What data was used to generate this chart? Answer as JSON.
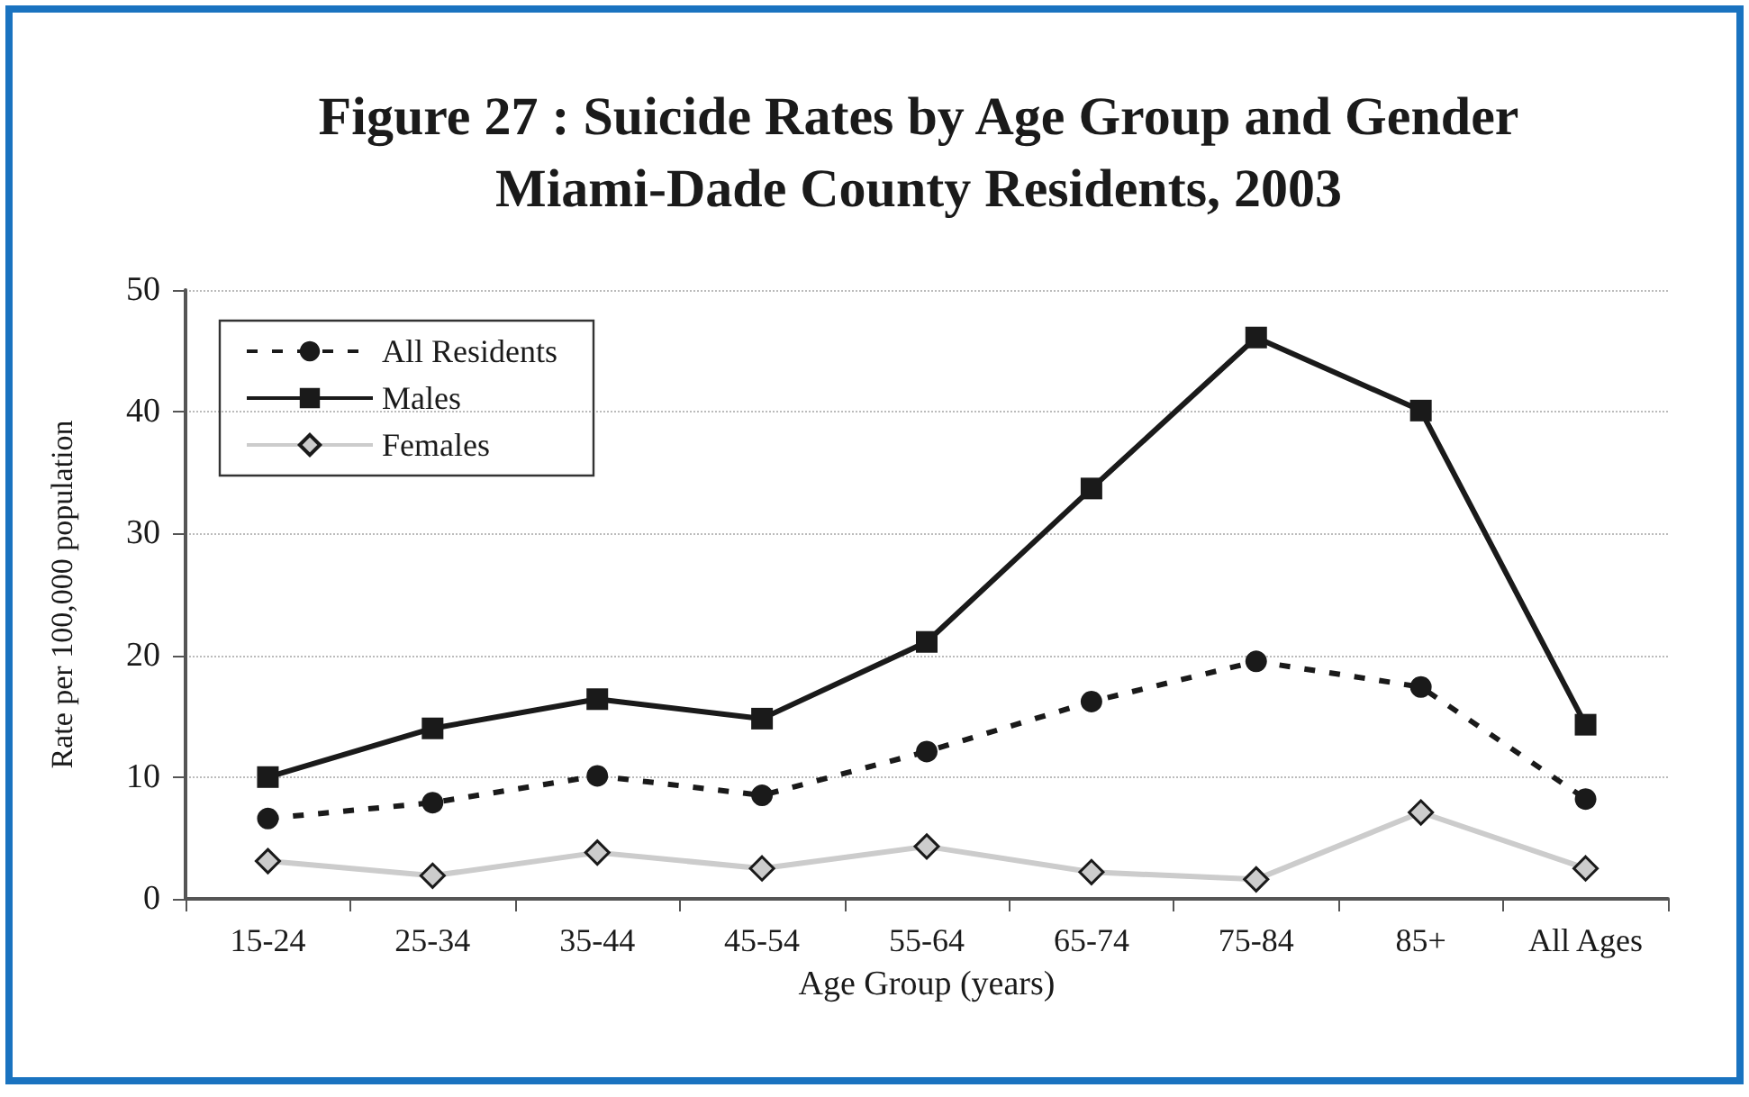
{
  "chart_data": {
    "type": "line",
    "title": "Figure 27 : Suicide Rates by Age Group and Gender\nMiami-Dade County Residents, 2003",
    "xlabel": "Age Group (years)",
    "ylabel": "Rate per 100,000 population",
    "categories": [
      "15-24",
      "25-34",
      "35-44",
      "45-54",
      "55-64",
      "65-74",
      "75-84",
      "85+",
      "All Ages"
    ],
    "series": [
      {
        "name": "All Residents",
        "color": "#1a1a1a",
        "marker": "circle",
        "line_style": "dashed",
        "values": [
          6.6,
          7.9,
          10.1,
          8.5,
          12.1,
          16.2,
          19.5,
          17.4,
          8.2
        ]
      },
      {
        "name": "Males",
        "color": "#1a1a1a",
        "marker": "square",
        "line_style": "solid",
        "values": [
          10,
          14,
          16.4,
          14.8,
          21.1,
          33.7,
          46.1,
          40.1,
          14.3
        ]
      },
      {
        "name": "Females",
        "color": "#cccccc",
        "marker": "diamond",
        "line_style": "solid",
        "values": [
          3.1,
          1.9,
          3.8,
          2.5,
          4.3,
          2.2,
          1.6,
          7.1,
          2.5
        ]
      }
    ],
    "ylim": [
      0,
      50
    ],
    "yticks": [
      0,
      10,
      20,
      30,
      40,
      50
    ],
    "grid": "y",
    "legend": "top left"
  }
}
